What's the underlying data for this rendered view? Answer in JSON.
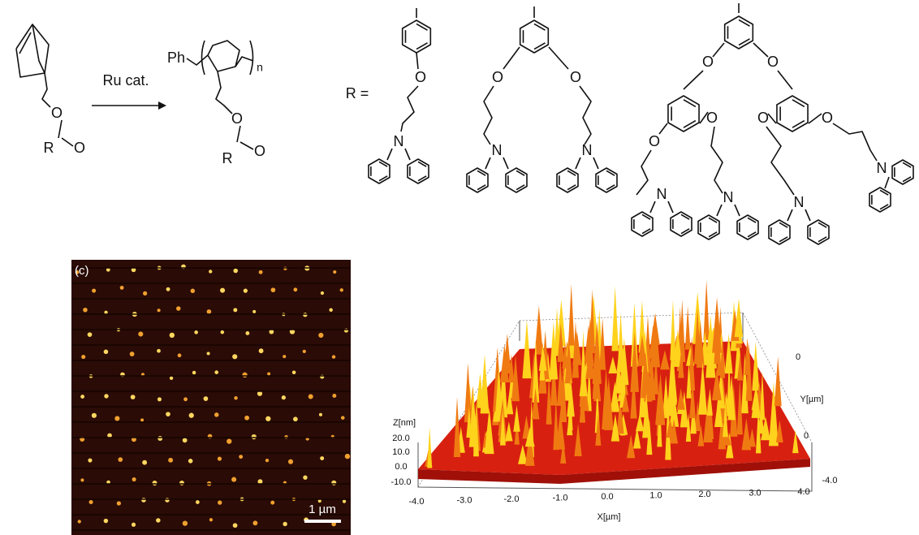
{
  "scheme": {
    "monomer_labels": [
      "O",
      "R",
      "O"
    ],
    "catalyst": "Ru cat.",
    "polymer_labels": [
      "Ph",
      "n",
      "O",
      "R",
      "O"
    ],
    "r_equals": "R =",
    "g1_labels": [
      "O",
      "N"
    ],
    "g2_labels": [
      "O",
      "O",
      "N",
      "N"
    ],
    "g3_labels": [
      "O",
      "O",
      "O",
      "O",
      "O",
      "O",
      "N",
      "N",
      "N",
      "N"
    ]
  },
  "afm_image": {
    "panel_label": "(c)",
    "scale_bar": "1 µm"
  },
  "surface_plot": {
    "z_axis_label": "Z[nm]",
    "z_ticks": [
      "20.0",
      "10.0",
      "0.0",
      "-10.0"
    ],
    "x_axis_label": "X[µm]",
    "x_ticks": [
      "-4.0",
      "-3.0",
      "-2.0",
      "-1.0",
      "0.0",
      "1.0",
      "2.0",
      "3.0",
      "4.0"
    ],
    "y_axis_label": "Y[µm]",
    "y_ticks": [
      "-4.0",
      "0",
      "0"
    ]
  }
}
